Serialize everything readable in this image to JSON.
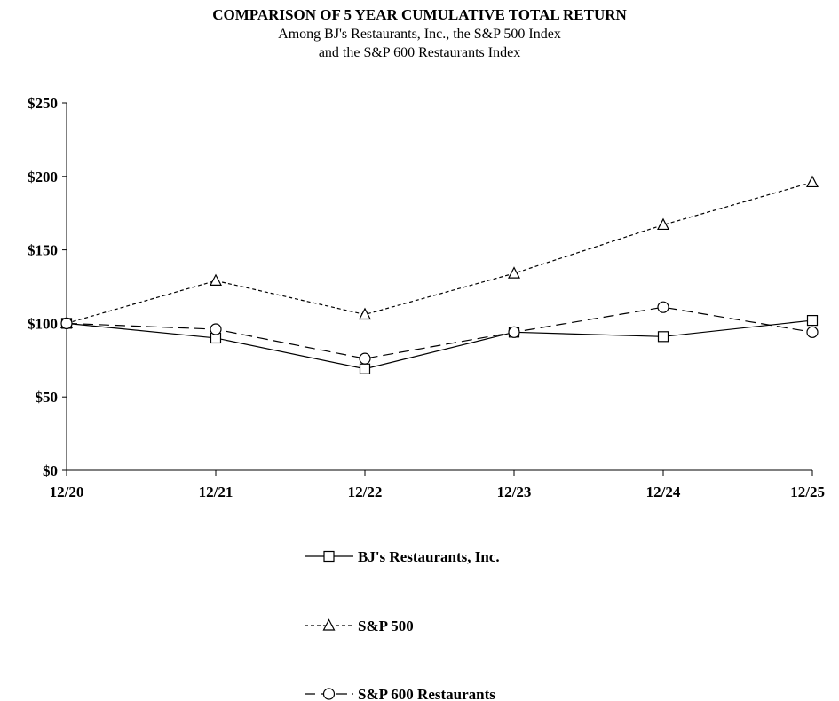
{
  "chart_data": {
    "type": "line",
    "title": "COMPARISON OF 5 YEAR CUMULATIVE TOTAL RETURN",
    "subtitle_lines": [
      "Among BJ's Restaurants, Inc., the S&P 500 Index",
      "and the S&P 600 Restaurants Index"
    ],
    "x": [
      "12/20",
      "12/21",
      "12/22",
      "12/23",
      "12/24",
      "12/25"
    ],
    "y_ticks": [
      "$0",
      "$50",
      "$100",
      "$150",
      "$200",
      "$250"
    ],
    "ylim": [
      0,
      250
    ],
    "grid": false,
    "legend_position": "bottom-center",
    "series": [
      {
        "name": "BJ's Restaurants, Inc.",
        "values": [
          100,
          90,
          69,
          94,
          91,
          102
        ],
        "marker": "square",
        "dash": "solid",
        "color": "#000000"
      },
      {
        "name": "S&P 500",
        "values": [
          100,
          129,
          106,
          134,
          167,
          196
        ],
        "marker": "triangle",
        "dash": "dotted",
        "color": "#000000"
      },
      {
        "name": "S&P 600 Restaurants",
        "values": [
          100,
          96,
          76,
          94,
          111,
          94
        ],
        "marker": "circle",
        "dash": "long-dash",
        "color": "#000000"
      }
    ]
  }
}
